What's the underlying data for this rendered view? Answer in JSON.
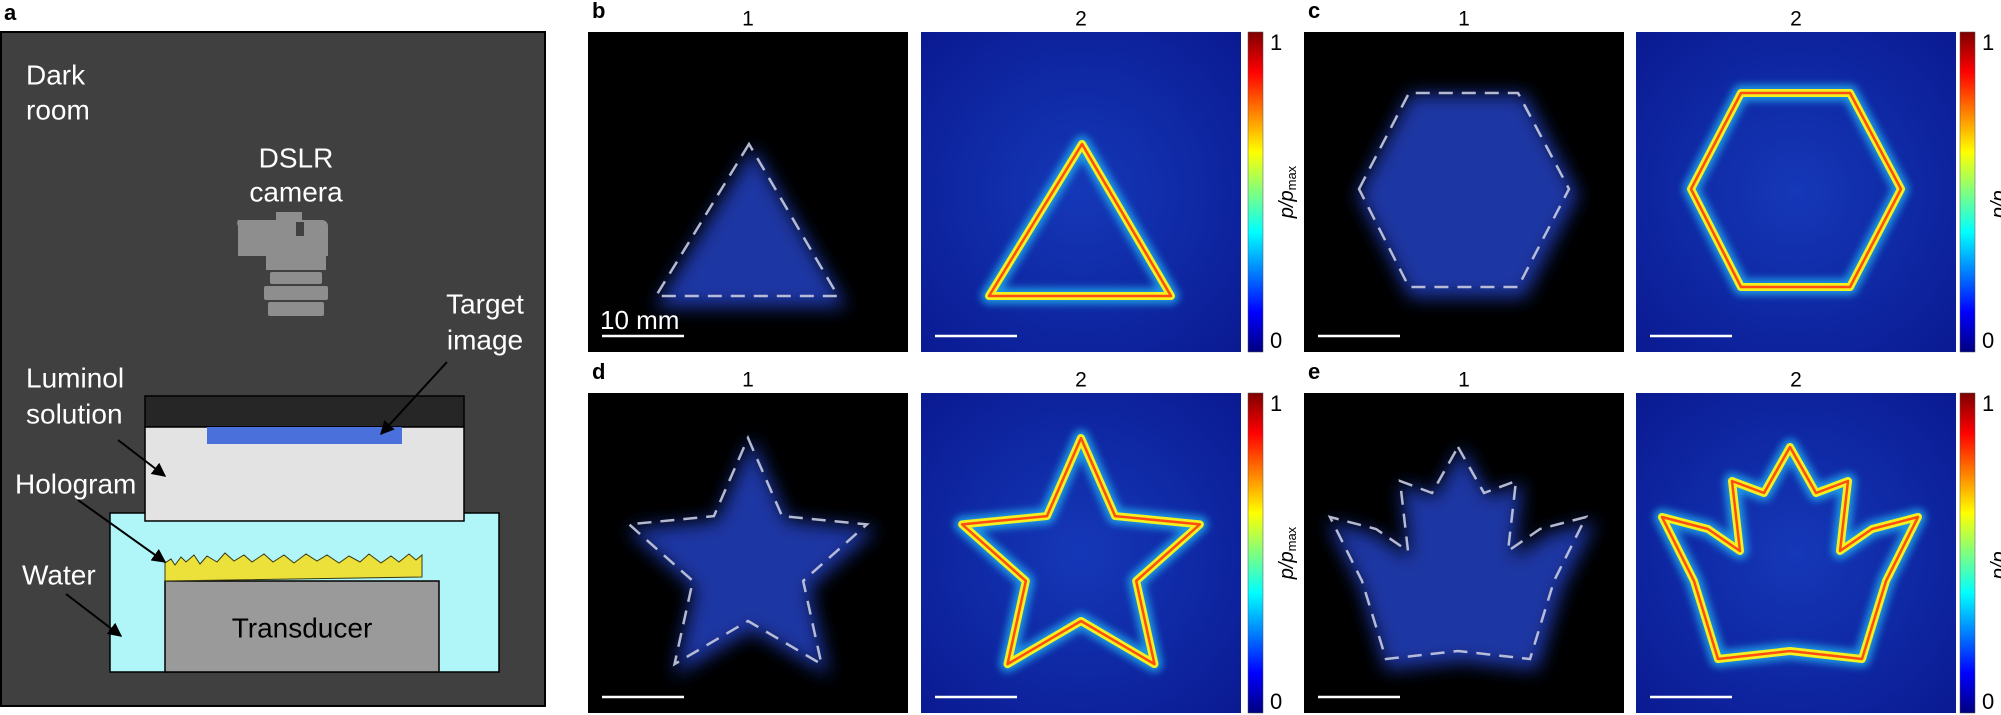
{
  "panel_a": {
    "label": "a",
    "dark_room": [
      "Dark",
      "room"
    ],
    "camera": [
      "DSLR",
      "camera"
    ],
    "target": [
      "Target",
      "image"
    ],
    "luminol": [
      "Luminol",
      "solution"
    ],
    "hologram": "Hologram",
    "water": "Water",
    "transducer": "Transducer"
  },
  "panels": [
    {
      "label": "b",
      "columns": [
        "1",
        "2"
      ],
      "colorbar": {
        "ticks": [
          "1",
          "0"
        ],
        "label": "p/p",
        "label_sub": "max"
      },
      "scale_bar": "10 mm"
    },
    {
      "label": "c",
      "columns": [
        "1",
        "2"
      ],
      "colorbar": {
        "ticks": [
          "1",
          "0"
        ],
        "label": "p/p",
        "label_sub": "max"
      }
    },
    {
      "label": "d",
      "columns": [
        "1",
        "2"
      ],
      "colorbar": {
        "ticks": [
          "1",
          "0"
        ],
        "label": "p/p",
        "label_sub": "max"
      }
    },
    {
      "label": "e",
      "columns": [
        "1",
        "2"
      ],
      "colorbar": {
        "ticks": [
          "1",
          "0"
        ],
        "label": "p/p",
        "label_sub": "max"
      }
    }
  ]
}
